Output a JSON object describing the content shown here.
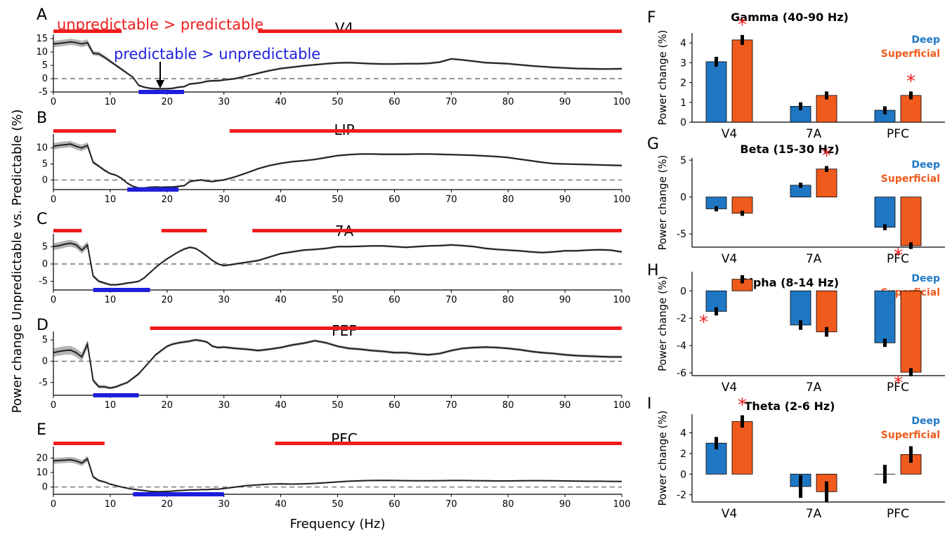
{
  "colors": {
    "significant_up": "#ee1c1c",
    "significant_down": "#1e1edc",
    "line": "#222222",
    "sem_band": "#b5b5b5",
    "deep": "#1f77c4",
    "superficial": "#f05a1c",
    "star": "#ee1c1c"
  },
  "annotations": {
    "unpredictable_gt": "unpredictable  > predictable",
    "predictable_gt": "predictable > unpredictable"
  },
  "chart_data": [
    {
      "type": "line",
      "panel": "A",
      "title": "V4",
      "xlim": [
        0,
        100
      ],
      "ylim": [
        -5,
        15
      ],
      "yticks": [
        -5,
        0,
        5,
        10,
        15
      ],
      "x": [
        0,
        1,
        2,
        3,
        4,
        5,
        6,
        7,
        8,
        9,
        10,
        11,
        12,
        13,
        14,
        15,
        16,
        17,
        18,
        19,
        20,
        21,
        22,
        23,
        24,
        25,
        26,
        27,
        28,
        29,
        30,
        32,
        34,
        36,
        38,
        40,
        42,
        44,
        46,
        48,
        50,
        52,
        54,
        56,
        58,
        60,
        62,
        64,
        66,
        68,
        70,
        72,
        74,
        76,
        78,
        80,
        82,
        84,
        86,
        88,
        90,
        92,
        94,
        96,
        98,
        100
      ],
      "y": [
        13,
        13.2,
        13.5,
        13.8,
        13.5,
        13,
        13.5,
        9.5,
        9.3,
        8,
        6.5,
        5,
        3.5,
        2,
        0.5,
        -2.5,
        -3.2,
        -3.6,
        -3.8,
        -3.8,
        -3.8,
        -3.6,
        -3.2,
        -3,
        -2,
        -1.8,
        -1.5,
        -1,
        -0.8,
        -0.8,
        -0.5,
        0,
        1,
        2,
        3,
        3.8,
        4.3,
        4.8,
        5.2,
        5.6,
        5.9,
        6,
        5.8,
        5.6,
        5.5,
        5.5,
        5.6,
        5.6,
        5.7,
        6.2,
        7.4,
        7,
        6.5,
        6,
        5.8,
        5.6,
        5.2,
        4.8,
        4.5,
        4.2,
        4,
        3.8,
        3.7,
        3.6,
        3.6,
        3.7
      ],
      "sem": [
        1.2,
        1.2,
        1.2,
        1.2,
        1.2,
        1.2,
        1.2,
        0.8,
        0.8,
        0.7,
        0.6,
        0.5,
        0.5,
        0.4,
        0.4,
        0.4,
        0.4,
        0.4,
        0.4,
        0.4,
        0.4,
        0.4,
        0.4,
        0.4,
        0.4,
        0.4,
        0.4,
        0.4,
        0.4,
        0.4,
        0.4,
        0.4,
        0.4,
        0.4,
        0.4,
        0.4,
        0.4,
        0.4,
        0.4,
        0.4,
        0.4,
        0.4,
        0.4,
        0.4,
        0.4,
        0.4,
        0.4,
        0.4,
        0.4,
        0.4,
        0.4,
        0.4,
        0.4,
        0.4,
        0.4,
        0.4,
        0.4,
        0.4,
        0.4,
        0.4,
        0.4,
        0.4,
        0.4,
        0.4,
        0.4,
        0.4
      ],
      "up_bars": [
        [
          0,
          12
        ],
        [
          36,
          100
        ]
      ],
      "down_bars": [
        [
          15,
          23
        ]
      ]
    },
    {
      "type": "line",
      "panel": "B",
      "title": "LIP",
      "xlim": [
        0,
        100
      ],
      "ylim": [
        -3,
        13
      ],
      "yticks": [
        0,
        5,
        10
      ],
      "x": [
        0,
        1,
        2,
        3,
        4,
        5,
        6,
        7,
        8,
        9,
        10,
        11,
        12,
        13,
        14,
        15,
        16,
        17,
        18,
        19,
        20,
        21,
        22,
        23,
        24,
        25,
        26,
        27,
        28,
        29,
        30,
        32,
        34,
        36,
        38,
        40,
        42,
        44,
        46,
        48,
        50,
        52,
        54,
        56,
        58,
        60,
        62,
        64,
        66,
        68,
        70,
        72,
        74,
        76,
        78,
        80,
        82,
        84,
        86,
        88,
        90,
        92,
        94,
        96,
        98,
        100
      ],
      "y": [
        10.5,
        10.8,
        11,
        11.2,
        10.5,
        10,
        10.8,
        5.5,
        4.3,
        3,
        2,
        1.5,
        0.5,
        -1,
        -2,
        -2.5,
        -2.5,
        -2.3,
        -2.2,
        -2.3,
        -2.2,
        -2.2,
        -2,
        -1.8,
        -0.5,
        -0.2,
        0,
        -0.3,
        -0.5,
        -0.2,
        0,
        1,
        2.2,
        3.5,
        4.5,
        5.2,
        5.7,
        6,
        6.4,
        7,
        7.6,
        7.9,
        8.1,
        8.1,
        8,
        8,
        8,
        8.1,
        8.1,
        8,
        7.9,
        7.8,
        7.7,
        7.5,
        7.3,
        7,
        6.5,
        6,
        5.5,
        5.1,
        5,
        4.9,
        4.8,
        4.7,
        4.6,
        4.5
      ],
      "sem": [
        1.0,
        1.0,
        1.0,
        1.0,
        1.0,
        1.0,
        1.0,
        0.5,
        0.4,
        0.4,
        0.3,
        0.3,
        0.3,
        0.3,
        0.3,
        0.3,
        0.3,
        0.3,
        0.3,
        0.3,
        0.3,
        0.3,
        0.3,
        0.3,
        0.3,
        0.3,
        0.3,
        0.3,
        0.3,
        0.3,
        0.3,
        0.3,
        0.3,
        0.3,
        0.3,
        0.3,
        0.3,
        0.3,
        0.3,
        0.3,
        0.3,
        0.3,
        0.3,
        0.3,
        0.3,
        0.3,
        0.3,
        0.3,
        0.3,
        0.3,
        0.3,
        0.3,
        0.3,
        0.3,
        0.3,
        0.3,
        0.3,
        0.3,
        0.3,
        0.3,
        0.3,
        0.3,
        0.3,
        0.3,
        0.3,
        0.3
      ],
      "up_bars": [
        [
          0,
          11
        ],
        [
          31,
          100
        ]
      ],
      "down_bars": [
        [
          13,
          22
        ]
      ]
    },
    {
      "type": "line",
      "panel": "C",
      "title": "7A",
      "xlim": [
        0,
        100
      ],
      "ylim": [
        -7.5,
        7.5
      ],
      "yticks": [
        -5,
        0,
        5
      ],
      "x": [
        0,
        1,
        2,
        3,
        4,
        5,
        6,
        7,
        8,
        9,
        10,
        11,
        12,
        13,
        14,
        15,
        16,
        17,
        18,
        19,
        20,
        21,
        22,
        23,
        24,
        25,
        26,
        27,
        28,
        29,
        30,
        32,
        34,
        36,
        38,
        40,
        42,
        44,
        46,
        48,
        50,
        52,
        54,
        56,
        58,
        60,
        62,
        64,
        66,
        68,
        70,
        72,
        74,
        76,
        78,
        80,
        82,
        84,
        86,
        88,
        90,
        92,
        94,
        96,
        98,
        100
      ],
      "y": [
        5,
        5.3,
        5.7,
        6,
        5.5,
        4,
        5.5,
        -3.5,
        -5,
        -5.5,
        -6,
        -6,
        -5.8,
        -5.5,
        -5.3,
        -5,
        -4,
        -2.5,
        -1,
        0.3,
        1.5,
        2.5,
        3.5,
        4.3,
        4.8,
        4.5,
        3.5,
        2.3,
        1,
        0,
        -0.5,
        0,
        0.5,
        1,
        2,
        3,
        3.5,
        4,
        4.2,
        4.5,
        5,
        5,
        5.1,
        5.2,
        5.2,
        5,
        4.8,
        5,
        5.2,
        5.3,
        5.5,
        5.3,
        5,
        4.5,
        4.2,
        4,
        3.8,
        3.5,
        3.3,
        3.5,
        3.8,
        3.8,
        4,
        4.1,
        4,
        3.5
      ],
      "sem": [
        1.0,
        1.0,
        1.0,
        1.0,
        1.0,
        1.0,
        1.0,
        0.5,
        0.4,
        0.4,
        0.3,
        0.3,
        0.3,
        0.3,
        0.3,
        0.3,
        0.3,
        0.3,
        0.3,
        0.3,
        0.3,
        0.3,
        0.3,
        0.3,
        0.3,
        0.3,
        0.3,
        0.3,
        0.3,
        0.3,
        0.3,
        0.3,
        0.3,
        0.3,
        0.3,
        0.3,
        0.3,
        0.3,
        0.3,
        0.3,
        0.3,
        0.3,
        0.3,
        0.3,
        0.3,
        0.3,
        0.3,
        0.3,
        0.3,
        0.3,
        0.3,
        0.3,
        0.3,
        0.3,
        0.3,
        0.3,
        0.3,
        0.3,
        0.3,
        0.3,
        0.3,
        0.3,
        0.3,
        0.3,
        0.3,
        0.3
      ],
      "up_bars": [
        [
          0,
          5
        ],
        [
          19,
          27
        ],
        [
          35,
          100
        ]
      ],
      "down_bars": [
        [
          7,
          17
        ]
      ]
    },
    {
      "type": "line",
      "panel": "D",
      "title": "FEF",
      "xlim": [
        0,
        100
      ],
      "ylim": [
        -8,
        6
      ],
      "yticks": [
        -5,
        0,
        5
      ],
      "x": [
        0,
        1,
        2,
        3,
        4,
        5,
        6,
        7,
        8,
        9,
        10,
        11,
        12,
        13,
        14,
        15,
        16,
        17,
        18,
        19,
        20,
        21,
        22,
        23,
        24,
        25,
        26,
        27,
        28,
        29,
        30,
        32,
        34,
        36,
        38,
        40,
        42,
        44,
        46,
        48,
        50,
        52,
        54,
        56,
        58,
        60,
        62,
        64,
        66,
        68,
        70,
        72,
        74,
        76,
        78,
        80,
        82,
        84,
        86,
        88,
        90,
        92,
        94,
        96,
        98,
        100
      ],
      "y": [
        2,
        2.3,
        2.5,
        2.6,
        2,
        1,
        4,
        -4.5,
        -6,
        -6,
        -6.3,
        -6,
        -5.5,
        -5,
        -4,
        -3,
        -1.5,
        0,
        1.5,
        2.5,
        3.5,
        4,
        4.3,
        4.5,
        4.7,
        5,
        4.8,
        4.5,
        3.5,
        3.2,
        3.3,
        3,
        2.8,
        2.5,
        2.8,
        3.2,
        3.8,
        4.2,
        4.8,
        4.3,
        3.5,
        3,
        2.8,
        2.5,
        2.3,
        2,
        2,
        1.7,
        1.5,
        1.8,
        2.5,
        3,
        3.2,
        3.3,
        3.2,
        3,
        2.7,
        2.3,
        2,
        1.8,
        1.5,
        1.3,
        1.2,
        1.1,
        1,
        1
      ],
      "sem": [
        1.0,
        1.0,
        1.0,
        1.0,
        1.0,
        1.0,
        1.0,
        0.5,
        0.4,
        0.4,
        0.3,
        0.3,
        0.3,
        0.3,
        0.3,
        0.3,
        0.3,
        0.3,
        0.3,
        0.3,
        0.3,
        0.3,
        0.3,
        0.3,
        0.3,
        0.3,
        0.3,
        0.3,
        0.3,
        0.3,
        0.3,
        0.3,
        0.3,
        0.3,
        0.3,
        0.3,
        0.3,
        0.3,
        0.3,
        0.3,
        0.3,
        0.3,
        0.3,
        0.3,
        0.3,
        0.3,
        0.3,
        0.3,
        0.3,
        0.3,
        0.3,
        0.3,
        0.3,
        0.3,
        0.3,
        0.3,
        0.3,
        0.3,
        0.3,
        0.3,
        0.3,
        0.3,
        0.3,
        0.3,
        0.3,
        0.3
      ],
      "up_bars": [
        [
          17,
          100
        ]
      ],
      "down_bars": [
        [
          7,
          15
        ]
      ]
    },
    {
      "type": "line",
      "panel": "E",
      "title": "PFC",
      "xlim": [
        0,
        100
      ],
      "ylim": [
        -5,
        25
      ],
      "yticks": [
        0,
        10,
        20
      ],
      "xticks": [
        0,
        10,
        20,
        30,
        40,
        50,
        60,
        70,
        80,
        90,
        100
      ],
      "xlabel": "Frequency (Hz)",
      "x": [
        0,
        1,
        2,
        3,
        4,
        5,
        6,
        7,
        8,
        9,
        10,
        11,
        12,
        13,
        14,
        15,
        16,
        17,
        18,
        19,
        20,
        21,
        22,
        23,
        24,
        25,
        26,
        27,
        28,
        29,
        30,
        32,
        34,
        36,
        38,
        40,
        42,
        44,
        46,
        48,
        50,
        52,
        54,
        56,
        58,
        60,
        62,
        64,
        66,
        68,
        70,
        72,
        74,
        76,
        78,
        80,
        82,
        84,
        86,
        88,
        90,
        92,
        94,
        96,
        98,
        100
      ],
      "y": [
        18,
        18.3,
        18.5,
        18.8,
        18,
        16.5,
        19.5,
        7,
        4.5,
        3.5,
        2,
        1,
        0,
        -0.8,
        -1.5,
        -2,
        -2.5,
        -3,
        -3.2,
        -3.2,
        -3,
        -2.8,
        -2.5,
        -2.3,
        -2,
        -2,
        -1.8,
        -1.8,
        -1.5,
        -1.5,
        -1,
        0,
        1,
        1.5,
        2,
        2.2,
        2,
        2.2,
        2.5,
        3,
        3.5,
        4,
        4.3,
        4.5,
        4.6,
        4.5,
        4.4,
        4.3,
        4.3,
        4.4,
        4.5,
        4.5,
        4.4,
        4.3,
        4.2,
        4.2,
        4.3,
        4.4,
        4.4,
        4.3,
        4.2,
        4.1,
        4,
        4,
        3.9,
        3.8
      ],
      "sem": [
        2.0,
        2.0,
        2.0,
        2.0,
        2.0,
        2.0,
        2.0,
        1.0,
        0.8,
        0.6,
        0.5,
        0.5,
        0.5,
        0.5,
        0.5,
        0.5,
        0.5,
        0.5,
        0.5,
        0.5,
        0.5,
        0.5,
        0.5,
        0.5,
        0.5,
        0.5,
        0.5,
        0.5,
        0.5,
        0.5,
        0.5,
        0.5,
        0.5,
        0.5,
        0.5,
        0.5,
        0.5,
        0.5,
        0.5,
        0.5,
        0.5,
        0.5,
        0.5,
        0.5,
        0.5,
        0.5,
        0.5,
        0.5,
        0.5,
        0.5,
        0.5,
        0.5,
        0.5,
        0.5,
        0.5,
        0.5,
        0.5,
        0.5,
        0.5,
        0.5,
        0.5,
        0.5,
        0.5,
        0.5,
        0.5,
        0.5
      ],
      "up_bars": [
        [
          0,
          9
        ],
        [
          39,
          100
        ]
      ],
      "down_bars": [
        [
          14,
          30
        ]
      ]
    },
    {
      "type": "bar",
      "panel": "F",
      "title": "Gamma (40-90 Hz)",
      "ylabel": "Power change (%)",
      "categories": [
        "V4",
        "7A",
        "PFC"
      ],
      "series": [
        {
          "name": "Deep",
          "values": [
            3.05,
            0.8,
            0.6
          ],
          "err": [
            0.25,
            0.2,
            0.2
          ]
        },
        {
          "name": "Superficial",
          "values": [
            4.15,
            1.35,
            1.35
          ],
          "err": [
            0.25,
            0.2,
            0.2
          ]
        }
      ],
      "ylim": [
        0,
        4.5
      ],
      "yticks": [
        0,
        1,
        2,
        3,
        4
      ],
      "stars": [
        [
          0,
          1
        ],
        [
          2,
          1
        ]
      ]
    },
    {
      "type": "bar",
      "panel": "G",
      "title": "Beta (15-30 Hz)",
      "ylabel": "Power change (%)",
      "categories": [
        "V4",
        "7A",
        "PFC"
      ],
      "series": [
        {
          "name": "Deep",
          "values": [
            -1.6,
            1.6,
            -4.1
          ],
          "err": [
            0.35,
            0.35,
            0.4
          ]
        },
        {
          "name": "Superficial",
          "values": [
            -2.2,
            3.8,
            -6.6
          ],
          "err": [
            0.35,
            0.4,
            0.45
          ]
        }
      ],
      "ylim": [
        -6.8,
        5.3
      ],
      "yticks": [
        -5,
        0,
        5
      ],
      "stars": [
        [
          1,
          1
        ],
        [
          2,
          1
        ]
      ]
    },
    {
      "type": "bar",
      "panel": "H",
      "title": "Alpha (8-14 Hz)",
      "ylabel": "Power change (%)",
      "categories": [
        "V4",
        "7A",
        "PFC"
      ],
      "series": [
        {
          "name": "Deep",
          "values": [
            -1.5,
            -2.5,
            -3.8
          ],
          "err": [
            0.3,
            0.35,
            0.3
          ]
        },
        {
          "name": "Superficial",
          "values": [
            0.85,
            -3.0,
            -5.95
          ],
          "err": [
            0.3,
            0.35,
            0.3
          ]
        }
      ],
      "ylim": [
        -6.2,
        1.4
      ],
      "yticks": [
        -6,
        -4,
        -2,
        0
      ],
      "stars": [
        [
          0,
          0
        ],
        [
          2,
          1
        ]
      ]
    },
    {
      "type": "bar",
      "panel": "I",
      "title": "Theta (2-6 Hz)",
      "ylabel": "Power change (%)",
      "categories": [
        "V4",
        "7A",
        "PFC"
      ],
      "series": [
        {
          "name": "Deep",
          "values": [
            3.0,
            -1.2,
            0.0
          ],
          "err": [
            0.6,
            1.1,
            0.9
          ]
        },
        {
          "name": "Superficial",
          "values": [
            5.1,
            -1.7,
            1.9
          ],
          "err": [
            0.6,
            1.0,
            0.8
          ]
        }
      ],
      "ylim": [
        -2.7,
        5.8
      ],
      "yticks": [
        -2,
        0,
        2,
        4
      ],
      "stars": [
        [
          0,
          1
        ]
      ]
    }
  ],
  "ylabel_left": "Power change Unpredictable vs. Predictable (%)"
}
